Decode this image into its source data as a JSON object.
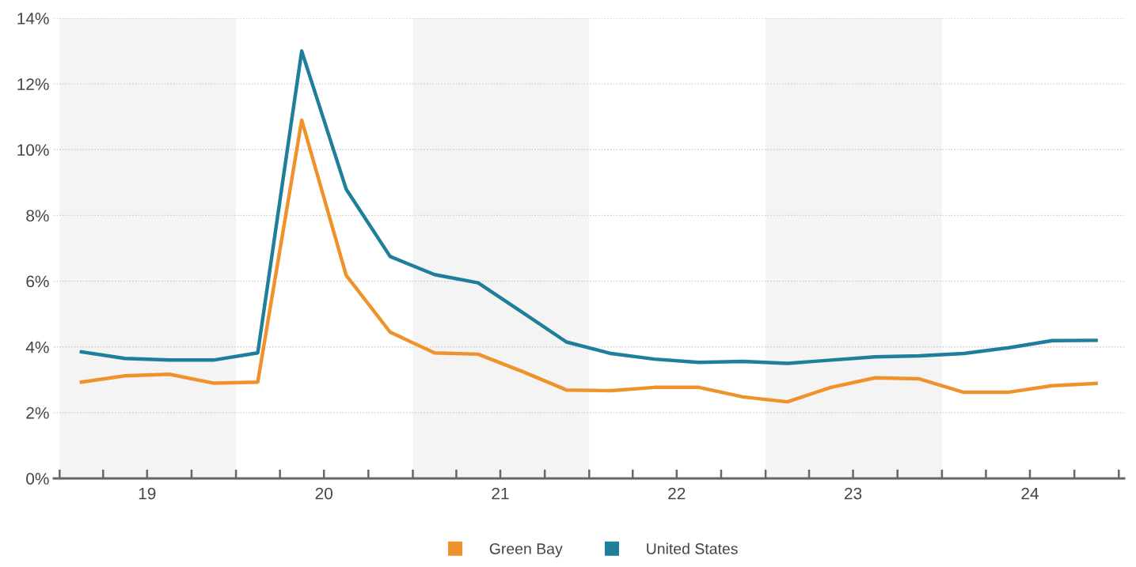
{
  "chart_data": {
    "type": "line",
    "x": [
      "2019-02-15",
      "2019-05-16",
      "2019-08-16",
      "2019-11-15",
      "2020-02-15",
      "2020-05-16",
      "2020-08-16",
      "2020-11-15",
      "2021-02-15",
      "2021-05-16",
      "2021-08-16",
      "2021-11-15",
      "2022-02-15",
      "2022-05-16",
      "2022-08-16",
      "2022-11-15",
      "2023-02-15",
      "2023-05-16",
      "2023-08-16",
      "2023-11-15",
      "2024-02-15",
      "2024-05-16",
      "2024-08-16",
      "2024-11-15"
    ],
    "series": [
      {
        "name": "Green Bay",
        "color": "#f0922b",
        "values": [
          2.93,
          3.12,
          3.17,
          2.9,
          2.93,
          10.9,
          6.18,
          4.45,
          3.82,
          3.78,
          3.25,
          2.69,
          2.67,
          2.77,
          2.77,
          2.48,
          2.33,
          2.77,
          3.06,
          3.03,
          2.62,
          2.62,
          2.82,
          2.89
        ]
      },
      {
        "name": "United States",
        "color": "#1f7f9b",
        "values": [
          3.85,
          3.65,
          3.6,
          3.6,
          3.82,
          13.0,
          8.8,
          6.75,
          6.2,
          5.95,
          5.05,
          4.15,
          3.8,
          3.63,
          3.53,
          3.56,
          3.5,
          3.6,
          3.7,
          3.73,
          3.8,
          3.97,
          4.19,
          4.2
        ]
      }
    ],
    "xlim": [
      "2018-12-20",
      "2025-01-12"
    ],
    "xticks": [
      {
        "value": "2019-01-01",
        "label": null
      },
      {
        "value": "2019-04-01",
        "label": null
      },
      {
        "value": "2019-07-01",
        "label": "19"
      },
      {
        "value": "2019-10-01",
        "label": null
      },
      {
        "value": "2020-01-01",
        "label": null
      },
      {
        "value": "2020-04-01",
        "label": null
      },
      {
        "value": "2020-07-01",
        "label": "20"
      },
      {
        "value": "2020-10-01",
        "label": null
      },
      {
        "value": "2021-01-01",
        "label": null
      },
      {
        "value": "2021-04-01",
        "label": null
      },
      {
        "value": "2021-07-01",
        "label": "21"
      },
      {
        "value": "2021-10-01",
        "label": null
      },
      {
        "value": "2022-01-01",
        "label": null
      },
      {
        "value": "2022-04-01",
        "label": null
      },
      {
        "value": "2022-07-01",
        "label": "22"
      },
      {
        "value": "2022-10-01",
        "label": null
      },
      {
        "value": "2023-01-01",
        "label": null
      },
      {
        "value": "2023-04-01",
        "label": null
      },
      {
        "value": "2023-07-01",
        "label": "23"
      },
      {
        "value": "2023-10-01",
        "label": null
      },
      {
        "value": "2024-01-01",
        "label": null
      },
      {
        "value": "2024-04-01",
        "label": null
      },
      {
        "value": "2024-07-01",
        "label": "24"
      },
      {
        "value": "2024-10-01",
        "label": null
      },
      {
        "value": "2025-01-01",
        "label": null
      }
    ],
    "ylim": [
      0,
      14
    ],
    "yticks": [
      {
        "value": 0,
        "label": "0%"
      },
      {
        "value": 2,
        "label": "2%"
      },
      {
        "value": 4,
        "label": "4%"
      },
      {
        "value": 6,
        "label": "6%"
      },
      {
        "value": 8,
        "label": "8%"
      },
      {
        "value": 10,
        "label": "10%"
      },
      {
        "value": 12,
        "label": "12%"
      },
      {
        "value": 14,
        "label": "14%"
      }
    ],
    "bands": [
      {
        "axis": "x",
        "from": "2019-01-01",
        "to": "2020-01-01",
        "label": null,
        "color": "#f4f4f4"
      },
      {
        "axis": "x",
        "from": "2021-01-01",
        "to": "2022-01-01",
        "label": null,
        "color": "#f4f4f4"
      },
      {
        "axis": "x",
        "from": "2023-01-01",
        "to": "2024-01-01",
        "label": null,
        "color": "#f4f4f4"
      }
    ],
    "grid": "y",
    "legend": "bottom",
    "marker": "none",
    "line_style": "solid"
  }
}
